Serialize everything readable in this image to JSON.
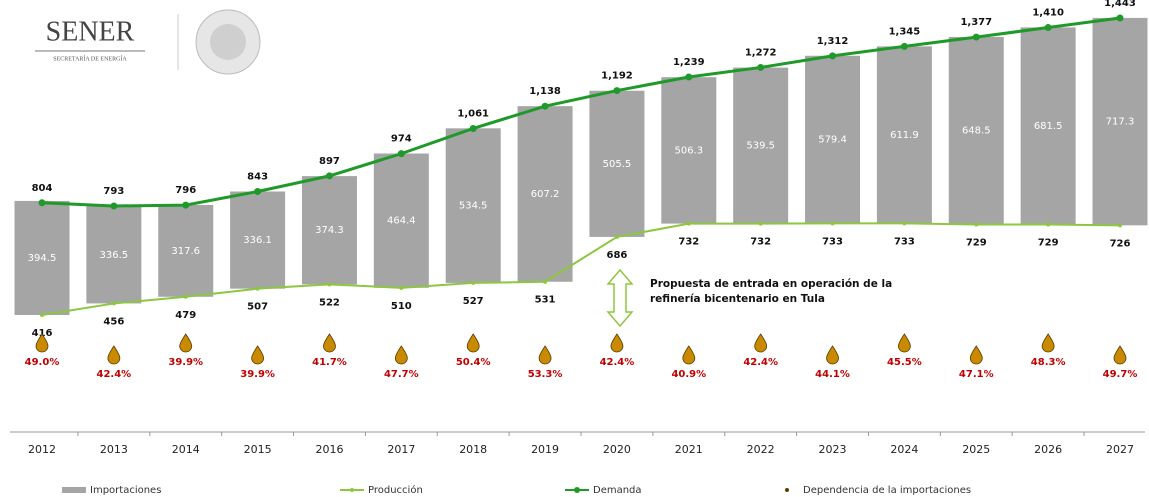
{
  "header": {
    "logo": "SENER",
    "logo_subtitle": "SECRETARÍA DE ENERGÍA"
  },
  "chart_data": {
    "type": "floating-bar-line",
    "categories": [
      "2012",
      "2013",
      "2014",
      "2015",
      "2016",
      "2017",
      "2018",
      "2019",
      "2020",
      "2021",
      "2022",
      "2023",
      "2024",
      "2025",
      "2026",
      "2027"
    ],
    "series": [
      {
        "name": "Importaciones",
        "color": "#a5a5a5",
        "values": [
          394.5,
          336.5,
          317.6,
          336.1,
          374.3,
          464.4,
          534.5,
          607.2,
          505.5,
          506.3,
          539.5,
          579.4,
          611.9,
          648.5,
          681.5,
          717.3
        ]
      },
      {
        "name": "Producción",
        "color": "#8dc63f",
        "values": [
          416,
          456,
          479,
          507,
          522,
          510,
          527,
          531,
          686,
          732,
          732,
          733,
          733,
          729,
          729,
          726
        ]
      },
      {
        "name": "Demanda",
        "color": "#1f9a2a",
        "values": [
          804,
          793,
          796,
          843,
          897,
          974,
          1061,
          1138,
          1192,
          1239,
          1272,
          1312,
          1345,
          1377,
          1410,
          1443
        ],
        "value_labels": [
          "804",
          "793",
          "796",
          "843",
          "897",
          "974",
          "1,061",
          "1,138",
          "1,192",
          "1,239",
          "1,272",
          "1,312",
          "1,345",
          "1,377",
          "1,410",
          "1,443"
        ]
      },
      {
        "name": "Dependencia de la importaciones",
        "color": "#c00000",
        "values": [
          49.0,
          42.4,
          39.9,
          39.9,
          41.7,
          47.7,
          50.4,
          53.3,
          42.4,
          40.9,
          42.4,
          44.1,
          45.5,
          47.1,
          48.3,
          49.7
        ],
        "value_labels": [
          "49.0%",
          "42.4%",
          "39.9%",
          "39.9%",
          "41.7%",
          "47.7%",
          "50.4%",
          "53.3%",
          "42.4%",
          "40.9%",
          "42.4%",
          "44.1%",
          "45.5%",
          "47.1%",
          "48.3%",
          "49.7%"
        ]
      }
    ],
    "annotation": [
      "Propuesta de entrada en operación de la",
      "refinería bicentenario en Tula"
    ]
  }
}
